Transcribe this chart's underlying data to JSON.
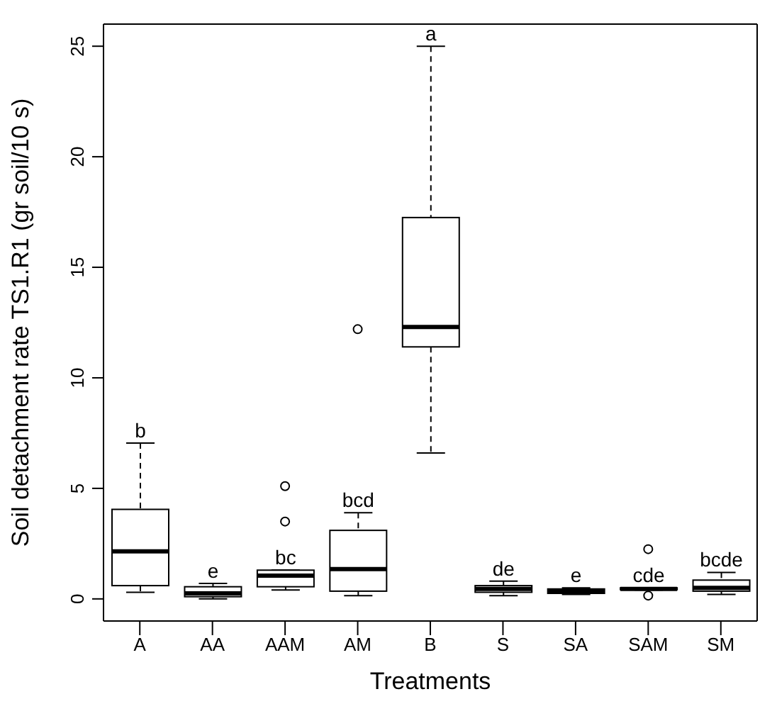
{
  "chart_data": {
    "type": "box",
    "xlabel": "Treatments",
    "ylabel": "Soil detachment rate TS1.R1 (gr soil/10 s)",
    "categories": [
      "A",
      "AA",
      "AAM",
      "AM",
      "B",
      "S",
      "SA",
      "SAM",
      "SM"
    ],
    "ylim": [
      -1,
      26
    ],
    "yticks": [
      0,
      5,
      10,
      15,
      20,
      25
    ],
    "boxes": [
      {
        "low": 0.3,
        "q1": 0.6,
        "median": 2.15,
        "q3": 4.05,
        "high": 7.05
      },
      {
        "low": 0.0,
        "q1": 0.1,
        "median": 0.25,
        "q3": 0.55,
        "high": 0.7
      },
      {
        "low": 0.4,
        "q1": 0.55,
        "median": 1.05,
        "q3": 1.3,
        "high": 1.3,
        "outliers": [
          3.5,
          5.1
        ]
      },
      {
        "low": 0.15,
        "q1": 0.35,
        "median": 1.35,
        "q3": 3.1,
        "high": 3.9,
        "outliers": [
          12.2
        ]
      },
      {
        "low": 6.6,
        "q1": 11.4,
        "median": 12.3,
        "q3": 17.25,
        "high": 25.0
      },
      {
        "low": 0.15,
        "q1": 0.3,
        "median": 0.45,
        "q3": 0.6,
        "high": 0.8
      },
      {
        "low": 0.2,
        "q1": 0.25,
        "median": 0.35,
        "q3": 0.45,
        "high": 0.5
      },
      {
        "low": 0.4,
        "q1": 0.42,
        "median": 0.45,
        "q3": 0.5,
        "high": 0.5,
        "outliers": [
          0.15,
          2.25
        ]
      },
      {
        "low": 0.2,
        "q1": 0.35,
        "median": 0.5,
        "q3": 0.85,
        "high": 1.2
      }
    ],
    "annotations": [
      "b",
      "e",
      "bc",
      "bcd",
      "a",
      "de",
      "e",
      "cde",
      "bcde"
    ]
  }
}
